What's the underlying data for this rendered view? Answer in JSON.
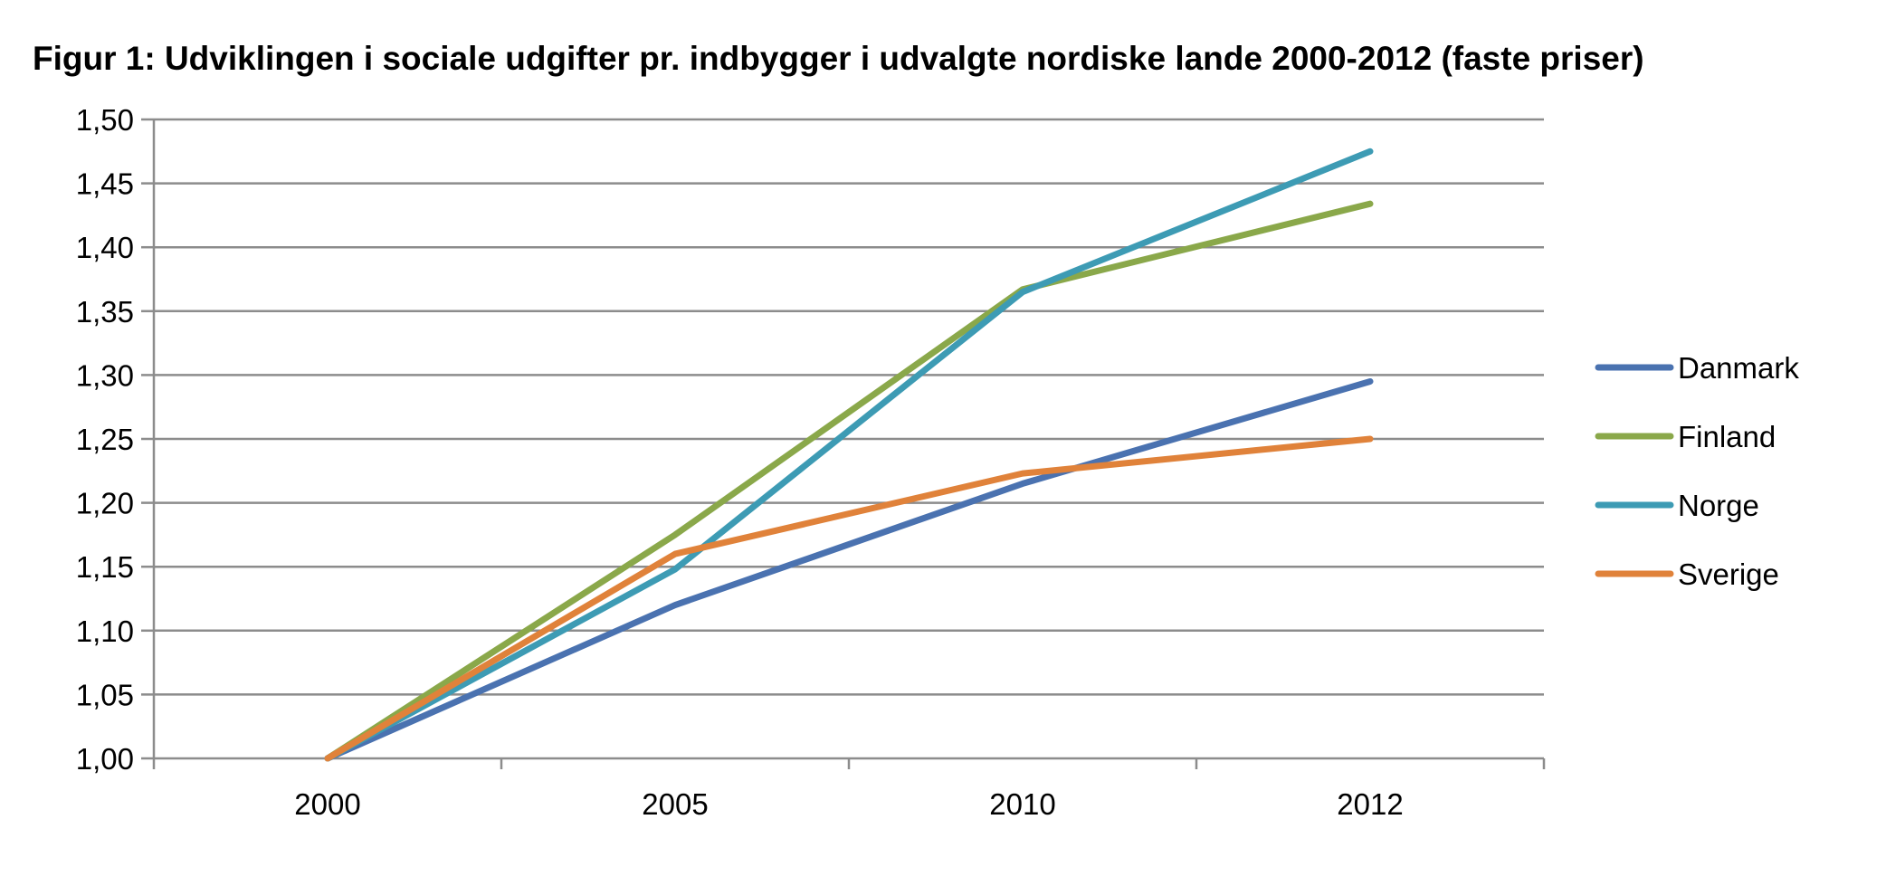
{
  "chart_data": {
    "type": "line",
    "title": "Figur 1: Udviklingen i sociale udgifter pr. indbygger i udvalgte nordiske lande 2000-2012 (faste priser)",
    "xlabel": "",
    "ylabel": "",
    "categories": [
      "2000",
      "2005",
      "2010",
      "2012"
    ],
    "ylim": [
      1.0,
      1.5
    ],
    "yticks": [
      "1,00",
      "1,05",
      "1,10",
      "1,15",
      "1,20",
      "1,25",
      "1,30",
      "1,35",
      "1,40",
      "1,45",
      "1,50"
    ],
    "grid": true,
    "legend_position": "right",
    "series": [
      {
        "name": "Danmark",
        "color": "#4a72b0",
        "values": [
          1.0,
          1.12,
          1.215,
          1.295
        ]
      },
      {
        "name": "Finland",
        "color": "#8aa84a",
        "values": [
          1.0,
          1.175,
          1.367,
          1.434
        ]
      },
      {
        "name": "Norge",
        "color": "#3d9bb4",
        "values": [
          1.0,
          1.148,
          1.365,
          1.475
        ]
      },
      {
        "name": "Sverige",
        "color": "#e0823a",
        "values": [
          1.0,
          1.16,
          1.223,
          1.25
        ]
      }
    ]
  }
}
